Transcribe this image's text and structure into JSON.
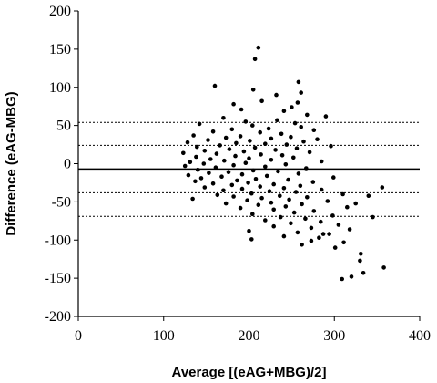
{
  "chart_data": {
    "type": "scatter",
    "title": "",
    "xlabel": "Average [(eAG+MBG)/2]",
    "ylabel": "Difference (eAG-MBG)",
    "xlim": [
      0,
      400
    ],
    "ylim": [
      -200,
      200
    ],
    "x_ticks": [
      0,
      100,
      200,
      300,
      400
    ],
    "y_ticks": [
      200,
      150,
      100,
      50,
      0,
      -50,
      -100,
      -150,
      -200
    ],
    "grid": false,
    "legend": "none",
    "reference_lines": [
      {
        "y": 54,
        "style": "dotted"
      },
      {
        "y": 24,
        "style": "dotted"
      },
      {
        "y": -7,
        "style": "solid"
      },
      {
        "y": -38,
        "style": "dotted"
      },
      {
        "y": -69,
        "style": "dotted"
      }
    ],
    "point_color": "#000000",
    "series": [
      {
        "points": [
          [
            211,
            152
          ],
          [
            207,
            137
          ],
          [
            258,
            107
          ],
          [
            160,
            102
          ],
          [
            205,
            97
          ],
          [
            261,
            93
          ],
          [
            232,
            90
          ],
          [
            215,
            82
          ],
          [
            257,
            80
          ],
          [
            182,
            78
          ],
          [
            250,
            74
          ],
          [
            191,
            71
          ],
          [
            241,
            69
          ],
          [
            268,
            64
          ],
          [
            290,
            62
          ],
          [
            170,
            60
          ],
          [
            233,
            57
          ],
          [
            196,
            55
          ],
          [
            254,
            53
          ],
          [
            142,
            52
          ],
          [
            204,
            50
          ],
          [
            261,
            48
          ],
          [
            223,
            46
          ],
          [
            180,
            45
          ],
          [
            276,
            44
          ],
          [
            158,
            42
          ],
          [
            213,
            41
          ],
          [
            238,
            39
          ],
          [
            135,
            37
          ],
          [
            190,
            36
          ],
          [
            249,
            35
          ],
          [
            173,
            34
          ],
          [
            226,
            33
          ],
          [
            280,
            32
          ],
          [
            152,
            31
          ],
          [
            201,
            30
          ],
          [
            264,
            29
          ],
          [
            128,
            28
          ],
          [
            185,
            27
          ],
          [
            219,
            26
          ],
          [
            244,
            25
          ],
          [
            166,
            24
          ],
          [
            296,
            23
          ],
          [
            139,
            22
          ],
          [
            207,
            21
          ],
          [
            256,
            20
          ],
          [
            177,
            19
          ],
          [
            231,
            18
          ],
          [
            148,
            17
          ],
          [
            194,
            16
          ],
          [
            271,
            15
          ],
          [
            123,
            14
          ],
          [
            162,
            13
          ],
          [
            214,
            12
          ],
          [
            239,
            11
          ],
          [
            184,
            10
          ],
          [
            138,
            9
          ],
          [
            252,
            8
          ],
          [
            200,
            7
          ],
          [
            155,
            6
          ],
          [
            226,
            5
          ],
          [
            171,
            4
          ],
          [
            285,
            3
          ],
          [
            131,
            2
          ],
          [
            196,
            1
          ],
          [
            147,
            0
          ],
          [
            243,
            -1
          ],
          [
            182,
            -2
          ],
          [
            125,
            -3
          ],
          [
            219,
            -4
          ],
          [
            161,
            -5
          ],
          [
            267,
            -6
          ],
          [
            140,
            -8
          ],
          [
            205,
            -9
          ],
          [
            234,
            -10
          ],
          [
            176,
            -11
          ],
          [
            153,
            -12
          ],
          [
            258,
            -13
          ],
          [
            192,
            -14
          ],
          [
            129,
            -15
          ],
          [
            221,
            -16
          ],
          [
            168,
            -17
          ],
          [
            299,
            -18
          ],
          [
            144,
            -19
          ],
          [
            208,
            -20
          ],
          [
            246,
            -21
          ],
          [
            186,
            -22
          ],
          [
            137,
            -23
          ],
          [
            275,
            -24
          ],
          [
            199,
            -25
          ],
          [
            158,
            -26
          ],
          [
            229,
            -27
          ],
          [
            180,
            -28
          ],
          [
            260,
            -29
          ],
          [
            213,
            -30
          ],
          [
            148,
            -31
          ],
          [
            241,
            -32
          ],
          [
            192,
            -33
          ],
          [
            285,
            -34
          ],
          [
            170,
            -35
          ],
          [
            224,
            -36
          ],
          [
            255,
            -37
          ],
          [
            203,
            -39
          ],
          [
            310,
            -40
          ],
          [
            163,
            -41
          ],
          [
            236,
            -42
          ],
          [
            182,
            -43
          ],
          [
            268,
            -44
          ],
          [
            215,
            -45
          ],
          [
            134,
            -46
          ],
          [
            247,
            -47
          ],
          [
            198,
            -48
          ],
          [
            292,
            -49
          ],
          [
            226,
            -51
          ],
          [
            173,
            -52
          ],
          [
            262,
            -53
          ],
          [
            211,
            -54
          ],
          [
            243,
            -56
          ],
          [
            315,
            -57
          ],
          [
            190,
            -58
          ],
          [
            229,
            -60
          ],
          [
            276,
            -62
          ],
          [
            253,
            -64
          ],
          [
            204,
            -66
          ],
          [
            298,
            -68
          ],
          [
            237,
            -70
          ],
          [
            266,
            -72
          ],
          [
            219,
            -74
          ],
          [
            284,
            -76
          ],
          [
            249,
            -78
          ],
          [
            305,
            -80
          ],
          [
            229,
            -82
          ],
          [
            273,
            -84
          ],
          [
            318,
            -86
          ],
          [
            200,
            -88
          ],
          [
            257,
            -90
          ],
          [
            294,
            -92
          ],
          [
            241,
            -95
          ],
          [
            282,
            -97
          ],
          [
            203,
            -99
          ],
          [
            273,
            -101
          ],
          [
            311,
            -103
          ],
          [
            262,
            -106
          ],
          [
            356,
            -31
          ],
          [
            340,
            -42
          ],
          [
            325,
            -52
          ],
          [
            331,
            -118
          ],
          [
            330,
            -127
          ],
          [
            334,
            -143
          ],
          [
            358,
            -136
          ],
          [
            309,
            -151
          ],
          [
            320,
            -148
          ],
          [
            301,
            -110
          ],
          [
            287,
            -92
          ],
          [
            345,
            -70
          ]
        ]
      }
    ]
  }
}
